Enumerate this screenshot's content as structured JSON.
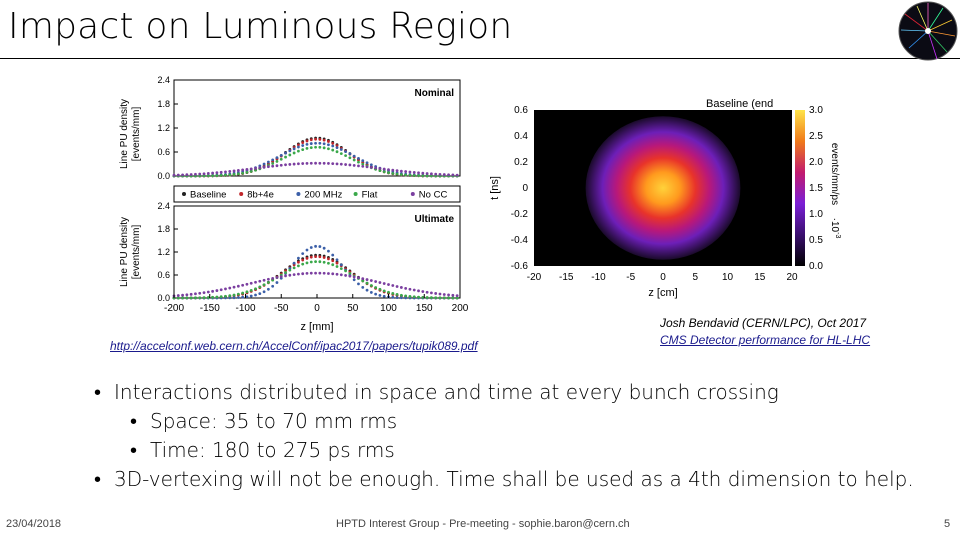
{
  "slide": {
    "title": "Impact on Luminous Region",
    "link_text": "http://accelconf.web.cern.ch/AccelConf/ipac2017/papers/tupik089.pdf",
    "credit_line1": "Josh Bendavid (CERN/LPC), Oct 2017",
    "credit_line2": "CMS Detector performance for HL-LHC",
    "bullets": [
      {
        "level": 1,
        "text": "Interactions distributed in space and time at every bunch crossing"
      },
      {
        "level": 2,
        "text": "Space: 35 to 70 mm rms"
      },
      {
        "level": 2,
        "text": "Time: 180 to 275 ps rms"
      },
      {
        "level": 1,
        "text": "3D-vertexing will not be enough. Time shall be used as a 4th dimension to help."
      }
    ],
    "bullet_char": "•",
    "footer": {
      "date": "23/04/2018",
      "center": "HPTD Interest Group - Pre-meeting - sophie.baron@cern.ch",
      "page": "5"
    }
  },
  "chart_data": [
    {
      "type": "line",
      "panels": [
        {
          "label": "Nominal",
          "ylim": [
            0.0,
            2.4
          ],
          "yticks": [
            "0.0",
            "0.6",
            "1.2",
            "1.8",
            "2.4"
          ],
          "series_sigma": {
            "Baseline": 45,
            "8b+4e": 45,
            "200 MHz": 52,
            "Flat": 48,
            "No CC": 85
          },
          "series_peak": {
            "Baseline": 0.95,
            "8b+4e": 0.92,
            "200 MHz": 0.82,
            "Flat": 0.72,
            "No CC": 0.32
          }
        },
        {
          "label": "Ultimate",
          "ylim": [
            0.0,
            2.4
          ],
          "yticks": [
            "0.0",
            "0.6",
            "1.2",
            "1.8",
            "2.4"
          ],
          "series_sigma": {
            "Baseline": 48,
            "8b+4e": 48,
            "200 MHz": 36,
            "Flat": 52,
            "No CC": 90
          },
          "series_peak": {
            "Baseline": 1.12,
            "8b+4e": 1.08,
            "200 MHz": 1.35,
            "Flat": 0.95,
            "No CC": 0.65
          }
        }
      ],
      "series": [
        {
          "name": "Baseline",
          "color": "#222222"
        },
        {
          "name": "8b+4e",
          "color": "#c0262b"
        },
        {
          "name": "200 MHz",
          "color": "#3b5fa8"
        },
        {
          "name": "Flat",
          "color": "#3aa84a"
        },
        {
          "name": "No CC",
          "color": "#7b3fa0"
        }
      ],
      "xlim": [
        -200,
        200
      ],
      "xticks": [
        "-200",
        "-150",
        "-100",
        "-50",
        "0",
        "50",
        "100",
        "150",
        "200"
      ],
      "xlabel": "z [mm]",
      "ylabel_line1": "Line PU density",
      "ylabel_line2": "[events/mm]"
    },
    {
      "type": "heatmap",
      "title": "Baseline (end",
      "xlim": [
        -20,
        20
      ],
      "ylim": [
        -0.6,
        0.6
      ],
      "xticks": [
        "-20",
        "-15",
        "-10",
        "-5",
        "0",
        "5",
        "10",
        "15",
        "20"
      ],
      "yticks": [
        "0.6",
        "0.4",
        "0.2",
        "0",
        "-0.2",
        "-0.4",
        "-0.6"
      ],
      "xlabel": "z [cm]",
      "ylabel": "t [ns]",
      "zlim": [
        0.0,
        3.0
      ],
      "zticks": [
        "3.0",
        "2.5",
        "2.0",
        "1.5",
        "1.0",
        "0.5",
        "0.0"
      ],
      "zlabel": "events/mm/ps",
      "zexp": "·10",
      "zexp_sup": "-3"
    }
  ]
}
